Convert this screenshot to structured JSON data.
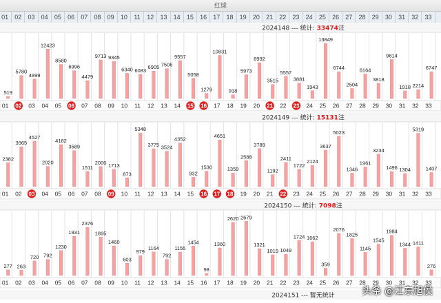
{
  "header": {
    "title": "红球",
    "columns": [
      "01",
      "02",
      "03",
      "04",
      "05",
      "06",
      "07",
      "08",
      "09",
      "10",
      "11",
      "12",
      "13",
      "14",
      "15",
      "16",
      "17",
      "18",
      "19",
      "20",
      "21",
      "22",
      "23",
      "24",
      "25",
      "26",
      "27",
      "28",
      "29",
      "30",
      "31",
      "32",
      "33"
    ]
  },
  "chart_data": [
    {
      "type": "bar",
      "issue": "2024148",
      "stat_label": "--- 统计:",
      "total": "33474",
      "total_suffix": "注",
      "categories": [
        "01",
        "02",
        "03",
        "04",
        "05",
        "06",
        "07",
        "08",
        "09",
        "10",
        "11",
        "12",
        "13",
        "14",
        "15",
        "16",
        "17",
        "18",
        "19",
        "20",
        "21",
        "22",
        "23",
        "24",
        "25",
        "26",
        "27",
        "28",
        "29",
        "30",
        "31",
        "32",
        "33"
      ],
      "values": [
        519,
        5780,
        4899,
        12423,
        8580,
        6996,
        4479,
        9713,
        9345,
        6340,
        6083,
        6905,
        7506,
        9557,
        5058,
        1279,
        10831,
        918,
        5973,
        8992,
        3515,
        5557,
        3881,
        1943,
        13849,
        6744,
        2504,
        6164,
        3818,
        9814,
        1918,
        2214,
        6747
      ],
      "ylim": [
        0,
        14400
      ],
      "highlighted": [
        "02",
        "06",
        "15",
        "16",
        "21",
        "23"
      ]
    },
    {
      "type": "bar",
      "issue": "2024149",
      "stat_label": "--- 统计:",
      "total": "15131",
      "total_suffix": "注",
      "categories": [
        "01",
        "02",
        "03",
        "04",
        "05",
        "06",
        "07",
        "08",
        "09",
        "10",
        "11",
        "12",
        "13",
        "14",
        "15",
        "16",
        "17",
        "18",
        "19",
        "20",
        "21",
        "22",
        "23",
        "24",
        "25",
        "26",
        "27",
        "28",
        "29",
        "30",
        "31",
        "32",
        "33"
      ],
      "values": [
        2382,
        3965,
        4527,
        2020,
        4182,
        3589,
        1511,
        2000,
        1713,
        873,
        5348,
        3775,
        3524,
        4352,
        932,
        1530,
        4651,
        1359,
        2588,
        3789,
        1192,
        2411,
        1722,
        2124,
        3637,
        5023,
        1346,
        1961,
        3234,
        1496,
        1304,
        5319,
        1407
      ],
      "ylim": [
        0,
        5560
      ],
      "highlighted": [
        "03",
        "09",
        "16",
        "17",
        "18",
        "22"
      ]
    },
    {
      "type": "bar",
      "issue": "2024150",
      "stat_label": "--- 统计:",
      "total": "7098",
      "total_suffix": "注",
      "categories": [
        "01",
        "02",
        "03",
        "04",
        "05",
        "06",
        "07",
        "08",
        "09",
        "10",
        "11",
        "12",
        "13",
        "14",
        "15",
        "16",
        "17",
        "18",
        "19",
        "20",
        "21",
        "22",
        "23",
        "24",
        "25",
        "26",
        "27",
        "28",
        "29",
        "30",
        "31",
        "32",
        "33"
      ],
      "values": [
        277,
        263,
        720,
        792,
        1230,
        1931,
        2376,
        1895,
        1460,
        603,
        979,
        1164,
        792,
        1155,
        1454,
        98,
        1360,
        2620,
        2679,
        1321,
        1019,
        1049,
        1724,
        1662,
        359,
        2076,
        1825,
        1145,
        1545,
        1984,
        1344,
        1411,
        276
      ],
      "ylim": [
        0,
        2790
      ],
      "highlighted": []
    }
  ],
  "footer": {
    "issue": "2024151",
    "text": "--- 暂无统计"
  },
  "watermark": "头条 @江东旭侯",
  "colors": {
    "bar": "#f4a3a3",
    "bar_edge": "#e88888",
    "ball": "#e02020",
    "total": "#e02020"
  }
}
